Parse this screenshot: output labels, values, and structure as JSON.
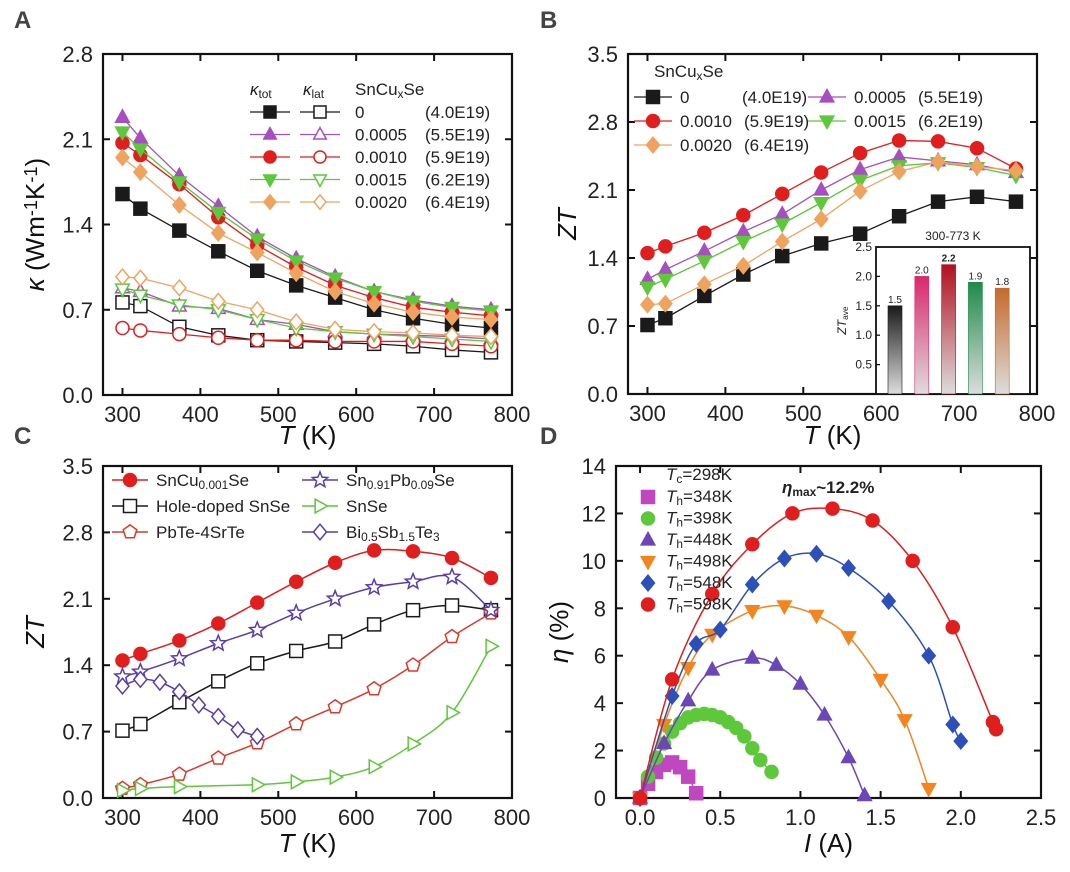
{
  "colors": {
    "black": "#1a1a1a",
    "purple": "#a54fc0",
    "red": "#e01e1e",
    "green": "#5cc83a",
    "orange": "#f0a35e",
    "blue": "#2c50b8",
    "darkpurple": "#5a3da8",
    "red_line": "#d93a2a",
    "axis": "#111111",
    "highlight": "#e01e1e"
  },
  "chart_data": [
    {
      "panel": "A",
      "type": "scatter",
      "xlabel": "T (K)",
      "ylabel": "κ (Wm⁻¹K⁻¹)",
      "xlim": [
        275,
        800
      ],
      "ylim": [
        0,
        2.8
      ],
      "xticks": [
        "300",
        "400",
        "500",
        "600",
        "700",
        "800"
      ],
      "yticks": [
        "0.0",
        "0.7",
        "1.4",
        "2.1",
        "2.8"
      ],
      "legend": {
        "header_tot": "κtot",
        "header_lat": "κlat",
        "header_comp": "SnCuxSe",
        "entries": [
          {
            "x": "0",
            "n": "(4.0E19)"
          },
          {
            "x": "0.0005",
            "n": "(5.5E19)"
          },
          {
            "x": "0.0010",
            "n": "(5.9E19)"
          },
          {
            "x": "0.0015",
            "n": "(6.2E19)"
          },
          {
            "x": "0.0020",
            "n": "(6.4E19)"
          }
        ]
      },
      "x": [
        300,
        323,
        373,
        423,
        473,
        523,
        573,
        623,
        673,
        723,
        773
      ],
      "series": [
        {
          "name": "κtot 0",
          "marker": "square",
          "filled": true,
          "color": "black",
          "values": [
            1.65,
            1.53,
            1.35,
            1.18,
            1.02,
            0.9,
            0.8,
            0.7,
            0.63,
            0.58,
            0.55
          ]
        },
        {
          "name": "κtot 0.0005",
          "marker": "triangle",
          "filled": true,
          "color": "purple",
          "values": [
            2.28,
            2.11,
            1.8,
            1.55,
            1.3,
            1.12,
            0.97,
            0.85,
            0.78,
            0.73,
            0.7
          ]
        },
        {
          "name": "κtot 0.0010",
          "marker": "circle",
          "filled": true,
          "color": "red",
          "values": [
            2.07,
            1.97,
            1.73,
            1.46,
            1.23,
            1.05,
            0.9,
            0.8,
            0.72,
            0.68,
            0.65
          ]
        },
        {
          "name": "κtot 0.0015",
          "marker": "triangle-down",
          "filled": true,
          "color": "green",
          "values": [
            2.16,
            2.02,
            1.75,
            1.5,
            1.28,
            1.1,
            0.96,
            0.85,
            0.77,
            0.72,
            0.69
          ]
        },
        {
          "name": "κtot 0.0020",
          "marker": "diamond",
          "filled": true,
          "color": "orange",
          "values": [
            1.95,
            1.83,
            1.56,
            1.33,
            1.17,
            1.0,
            0.85,
            0.75,
            0.68,
            0.64,
            0.62
          ]
        },
        {
          "name": "κlat 0",
          "marker": "square",
          "filled": false,
          "color": "black",
          "values": [
            0.76,
            0.73,
            0.56,
            0.49,
            0.45,
            0.44,
            0.43,
            0.42,
            0.4,
            0.37,
            0.35
          ]
        },
        {
          "name": "κlat 0.0005",
          "marker": "triangle",
          "filled": false,
          "color": "purple",
          "values": [
            0.88,
            0.85,
            0.73,
            0.71,
            0.62,
            0.58,
            0.52,
            0.5,
            0.49,
            0.48,
            0.46
          ]
        },
        {
          "name": "κlat 0.0010",
          "marker": "circle",
          "filled": false,
          "color": "red",
          "values": [
            0.55,
            0.53,
            0.5,
            0.47,
            0.45,
            0.45,
            0.44,
            0.44,
            0.44,
            0.42,
            0.4
          ]
        },
        {
          "name": "κlat 0.0015",
          "marker": "triangle-down",
          "filled": false,
          "color": "green",
          "values": [
            0.87,
            0.82,
            0.74,
            0.7,
            0.62,
            0.55,
            0.52,
            0.5,
            0.48,
            0.46,
            0.44
          ]
        },
        {
          "name": "κlat 0.0020",
          "marker": "diamond",
          "filled": false,
          "color": "orange",
          "values": [
            0.97,
            0.96,
            0.88,
            0.77,
            0.7,
            0.6,
            0.54,
            0.52,
            0.51,
            0.49,
            0.48
          ]
        }
      ]
    },
    {
      "panel": "B",
      "type": "scatter",
      "xlabel": "T (K)",
      "ylabel": "ZT",
      "xlim": [
        275,
        800
      ],
      "ylim": [
        0,
        3.5
      ],
      "xticks": [
        "300",
        "400",
        "500",
        "600",
        "700",
        "800"
      ],
      "yticks": [
        "0.0",
        "0.7",
        "1.4",
        "2.1",
        "2.8",
        "3.5"
      ],
      "legend": {
        "header": "SnCuxSe",
        "entries": [
          {
            "x": "0",
            "n": "(4.0E19)"
          },
          {
            "x": "0.0005",
            "n": "(5.5E19)"
          },
          {
            "x": "0.0010",
            "n": "(5.9E19)"
          },
          {
            "x": "0.0015",
            "n": "(6.2E19)"
          },
          {
            "x": "0.0020",
            "n": "(6.4E19)"
          }
        ]
      },
      "x": [
        300,
        323,
        373,
        423,
        473,
        523,
        573,
        623,
        673,
        723,
        773
      ],
      "series": [
        {
          "name": "0",
          "marker": "square",
          "filled": true,
          "color": "black",
          "values": [
            0.71,
            0.78,
            1.01,
            1.23,
            1.42,
            1.55,
            1.65,
            1.83,
            1.98,
            2.03,
            1.98
          ]
        },
        {
          "name": "0.0005",
          "marker": "triangle",
          "filled": true,
          "color": "purple",
          "values": [
            1.18,
            1.28,
            1.47,
            1.67,
            1.85,
            2.1,
            2.31,
            2.44,
            2.4,
            2.36,
            2.28
          ]
        },
        {
          "name": "0.0010",
          "marker": "circle",
          "filled": true,
          "color": "red",
          "values": [
            1.45,
            1.52,
            1.66,
            1.84,
            2.06,
            2.28,
            2.48,
            2.61,
            2.6,
            2.53,
            2.32
          ]
        },
        {
          "name": "0.0015",
          "marker": "triangle-down",
          "filled": true,
          "color": "green",
          "values": [
            1.1,
            1.18,
            1.37,
            1.57,
            1.75,
            1.97,
            2.2,
            2.35,
            2.38,
            2.33,
            2.25
          ]
        },
        {
          "name": "0.0020",
          "marker": "diamond",
          "filled": true,
          "color": "orange",
          "values": [
            0.92,
            0.93,
            1.13,
            1.32,
            1.57,
            1.8,
            2.09,
            2.29,
            2.39,
            2.34,
            2.3
          ]
        }
      ],
      "inset": {
        "title": "300-773 K",
        "ylabel": "ZTave",
        "ylim": [
          0,
          2.5
        ],
        "yticks": [
          "0.5",
          "1.0",
          "1.5",
          "2.0",
          "2.5"
        ],
        "labels": [
          "1.5",
          "2.0",
          "2.2",
          "1.9",
          "1.8"
        ],
        "values": [
          1.5,
          2.0,
          2.2,
          1.9,
          1.8
        ],
        "colors": [
          "#1a1a1a",
          "#d9286c",
          "#b01020",
          "#1f8a4a",
          "#c56a2a"
        ]
      }
    },
    {
      "panel": "C",
      "type": "line",
      "xlabel": "T (K)",
      "ylabel": "ZT",
      "xlim": [
        275,
        800
      ],
      "ylim": [
        0,
        3.5
      ],
      "xticks": [
        "300",
        "400",
        "500",
        "600",
        "700",
        "800"
      ],
      "yticks": [
        "0.0",
        "0.7",
        "1.4",
        "2.1",
        "2.8",
        "3.5"
      ],
      "legend_labels": [
        {
          "main": "SnCu",
          "sub": "0.001",
          "rest": "Se"
        },
        {
          "main": "Hole-doped SnSe",
          "sub": "",
          "rest": ""
        },
        {
          "main": "PbTe-4SrTe",
          "sub": "",
          "rest": ""
        },
        {
          "main": "Sn",
          "sub": "0.91",
          "rest": "Pb",
          "sub2": "0.09",
          "rest2": "Se"
        },
        {
          "main": "SnSe",
          "sub": "",
          "rest": ""
        },
        {
          "main": "Bi",
          "sub": "0.5",
          "rest": "Sb",
          "sub2": "1.5",
          "rest2": "Te",
          "sub3": "3"
        }
      ],
      "series": [
        {
          "name": "SnCu0.001Se",
          "marker": "circle",
          "filled": true,
          "color": "red",
          "x": [
            300,
            323,
            373,
            423,
            473,
            523,
            573,
            623,
            673,
            723,
            773
          ],
          "values": [
            1.45,
            1.52,
            1.66,
            1.84,
            2.06,
            2.28,
            2.48,
            2.61,
            2.6,
            2.53,
            2.32
          ]
        },
        {
          "name": "Hole-doped SnSe",
          "marker": "square",
          "filled": false,
          "color": "black",
          "x": [
            300,
            323,
            373,
            423,
            473,
            523,
            573,
            623,
            673,
            723,
            773
          ],
          "values": [
            0.71,
            0.78,
            1.01,
            1.23,
            1.42,
            1.55,
            1.65,
            1.83,
            1.98,
            2.03,
            1.98
          ]
        },
        {
          "name": "PbTe-4SrTe",
          "marker": "pentagon",
          "filled": false,
          "color": "red_line",
          "x": [
            300,
            323,
            373,
            423,
            473,
            523,
            573,
            623,
            673,
            723,
            773
          ],
          "values": [
            0.1,
            0.14,
            0.25,
            0.42,
            0.58,
            0.78,
            0.96,
            1.15,
            1.4,
            1.7,
            1.95
          ]
        },
        {
          "name": "Sn0.91Pb0.09Se",
          "marker": "star",
          "filled": false,
          "color": "darkpurple",
          "x": [
            300,
            323,
            373,
            423,
            473,
            523,
            573,
            623,
            673,
            723,
            773
          ],
          "values": [
            1.28,
            1.33,
            1.47,
            1.63,
            1.77,
            1.95,
            2.1,
            2.22,
            2.28,
            2.33,
            1.98
          ]
        },
        {
          "name": "SnSe",
          "marker": "triangle-right",
          "filled": false,
          "color": "green",
          "x": [
            300,
            323,
            373,
            473,
            523,
            573,
            623,
            673,
            723,
            773
          ],
          "values": [
            0.08,
            0.1,
            0.12,
            0.14,
            0.17,
            0.22,
            0.33,
            0.57,
            0.9,
            1.6
          ]
        },
        {
          "name": "Bi0.5Sb1.5Te3",
          "marker": "diamond",
          "filled": false,
          "color": "darkpurple",
          "x": [
            300,
            323,
            348,
            373,
            398,
            423,
            448,
            473
          ],
          "values": [
            1.18,
            1.25,
            1.22,
            1.12,
            0.98,
            0.86,
            0.72,
            0.65
          ]
        }
      ]
    },
    {
      "panel": "D",
      "type": "line",
      "xlabel": "I (A)",
      "ylabel": "η (%)",
      "xlim": [
        -0.15,
        2.5
      ],
      "ylim": [
        0,
        14
      ],
      "xticks": [
        "0.0",
        "0.5",
        "1.0",
        "1.5",
        "2.0",
        "2.5"
      ],
      "yticks": [
        "0",
        "2",
        "4",
        "6",
        "8",
        "10",
        "12",
        "14"
      ],
      "annotation": {
        "sym": "η",
        "sub": "max",
        "rest": "~12.2%"
      },
      "legend_title": {
        "sym": "T",
        "sub": "c",
        "rest": "=298K"
      },
      "legend_labels": [
        "=348K",
        "=398K",
        "=448K",
        "=498K",
        "=548K",
        "=598K"
      ],
      "legend_prefix": {
        "sym": "T",
        "sub": "h"
      },
      "series": [
        {
          "name": "Th=348K",
          "marker": "square",
          "color": "#c147c1",
          "x": [
            0.0,
            0.05,
            0.1,
            0.15,
            0.2,
            0.25,
            0.3,
            0.35
          ],
          "values": [
            0.0,
            0.6,
            1.1,
            1.4,
            1.5,
            1.3,
            0.9,
            0.2
          ]
        },
        {
          "name": "Th=398K",
          "marker": "circle",
          "color": "#5cc83a",
          "x": [
            0.0,
            0.05,
            0.1,
            0.15,
            0.2,
            0.25,
            0.3,
            0.35,
            0.4,
            0.45,
            0.5,
            0.55,
            0.6,
            0.65,
            0.7,
            0.75,
            0.82
          ],
          "values": [
            0.0,
            0.9,
            1.7,
            2.3,
            2.8,
            3.15,
            3.4,
            3.5,
            3.55,
            3.5,
            3.4,
            3.2,
            2.95,
            2.6,
            2.1,
            1.6,
            1.1
          ]
        },
        {
          "name": "Th=448K",
          "marker": "triangle",
          "color": "#6a46b8",
          "x": [
            0.0,
            0.15,
            0.3,
            0.45,
            0.7,
            0.85,
            1.0,
            1.15,
            1.3,
            1.4
          ],
          "values": [
            0.0,
            2.3,
            4.1,
            5.4,
            5.9,
            5.6,
            4.8,
            3.5,
            1.7,
            0.1
          ]
        },
        {
          "name": "Th=498K",
          "marker": "triangle-down",
          "color": "#f4841e",
          "x": [
            0.0,
            0.15,
            0.3,
            0.45,
            0.7,
            0.9,
            1.1,
            1.3,
            1.5,
            1.65,
            1.8
          ],
          "values": [
            0.0,
            3.1,
            5.5,
            6.9,
            7.9,
            8.1,
            7.7,
            6.8,
            5.0,
            3.3,
            0.4
          ]
        },
        {
          "name": "Th=548K",
          "marker": "diamond",
          "color": "#2c50b8",
          "x": [
            0.0,
            0.2,
            0.35,
            0.5,
            0.7,
            0.9,
            1.1,
            1.3,
            1.55,
            1.8,
            1.95,
            2.0
          ],
          "values": [
            0.0,
            4.3,
            6.5,
            7.1,
            9.0,
            10.1,
            10.3,
            9.7,
            8.3,
            6.0,
            3.1,
            2.4
          ]
        },
        {
          "name": "Th=598K",
          "marker": "circle",
          "color": "#e01e1e",
          "x": [
            0.0,
            0.2,
            0.45,
            0.7,
            0.95,
            1.2,
            1.45,
            1.7,
            1.95,
            2.2,
            2.22
          ],
          "values": [
            0.0,
            5.0,
            8.6,
            10.7,
            12.0,
            12.2,
            11.7,
            10.0,
            7.2,
            3.2,
            2.9
          ]
        }
      ]
    }
  ]
}
